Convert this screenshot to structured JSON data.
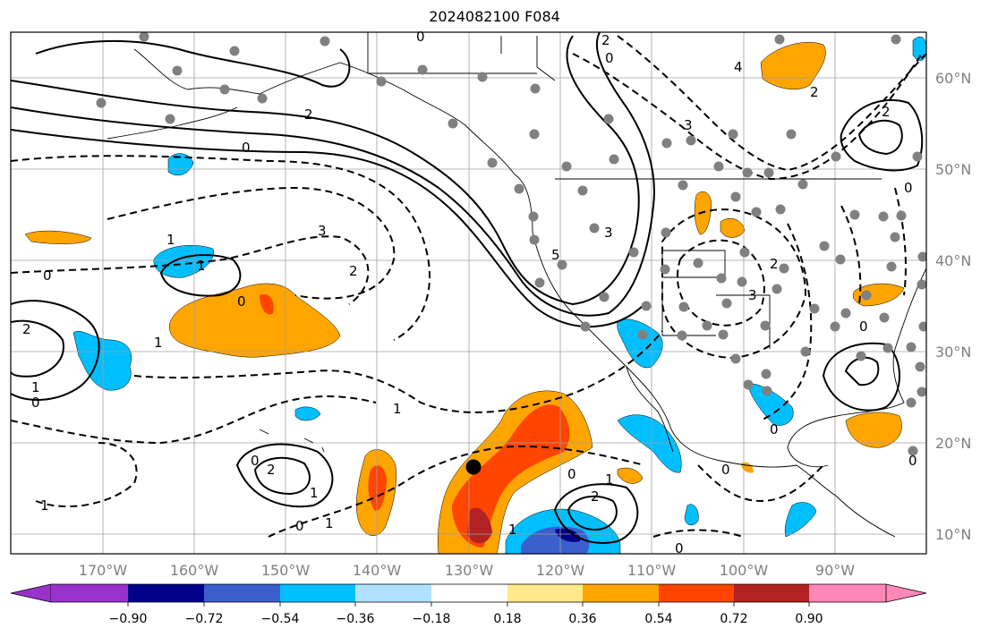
{
  "title": "2024082100 F084",
  "lat_labels": [
    "60°N",
    "50°N",
    "40°N",
    "30°N",
    "20°N",
    "10°N"
  ],
  "lon_labels": [
    "170°W",
    "160°W",
    "150°W",
    "140°W",
    "130°W",
    "120°W",
    "110°W",
    "100°W",
    "90°W"
  ],
  "colorbar": {
    "ticks": [
      "−0.90",
      "−0.72",
      "−0.54",
      "−0.36",
      "−0.18",
      "0.18",
      "0.36",
      "0.54",
      "0.72",
      "0.90"
    ],
    "colors": [
      "#9932cc",
      "#00008b",
      "#3a5fcd",
      "#00bfff",
      "#b0e2ff",
      "#ffffff",
      "#ffe98a",
      "#ffa500",
      "#ff4500",
      "#b22222",
      "#ff88b8"
    ]
  },
  "contour_labels": [
    "0",
    "2",
    "1",
    "2",
    "3",
    "4",
    "5",
    "3",
    "0",
    "1",
    "2",
    "3",
    "0",
    "1",
    "2",
    "3",
    "0",
    "1",
    "2",
    "0",
    "1",
    "2",
    "1",
    "0",
    "2",
    "3"
  ],
  "colors": {
    "frame": "#000000",
    "grid": "#a0a0a0",
    "land_outline": "#000000",
    "marker": "#808080"
  }
}
